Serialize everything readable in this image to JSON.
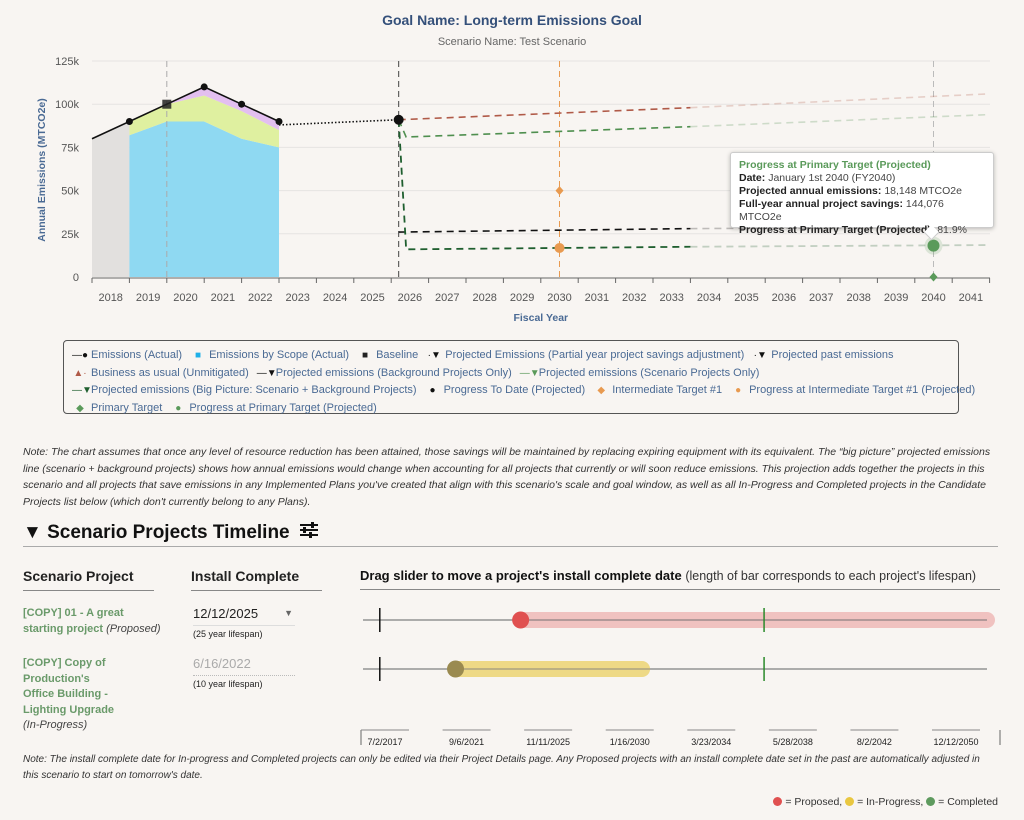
{
  "header": {
    "title": "Goal Name: Long-term Emissions Goal",
    "subtitle": "Scenario Name: Test Scenario"
  },
  "colors": {
    "scope1": "#8fd9f2",
    "scope2": "#dff0a0",
    "scope3": "#e3bff0",
    "unmitigated_fill": "#e2e0de",
    "bau": "#b05a48",
    "scenario_green": "#4f8f4f",
    "big_picture": "#1f5f2f",
    "intermediate": "#e89a50",
    "primary": "#5a9a5a",
    "axis_label": "#4a6a94",
    "proposed": "#e05050",
    "in_progress": "#e9c740",
    "completed": "#5e9a5e"
  },
  "chart_data": {
    "type": "line",
    "title": "Goal Name: Long-term Emissions Goal",
    "subtitle": "Scenario Name: Test Scenario",
    "xlabel": "Fiscal Year",
    "ylabel": "Annual Emissions (MTCO2e)",
    "xlim": [
      2018,
      2042
    ],
    "ylim": [
      0,
      125000
    ],
    "yticks": [
      0,
      25000,
      50000,
      75000,
      100000,
      125000
    ],
    "ytick_labels": [
      "0",
      "25k",
      "50k",
      "75k",
      "100k",
      "125k"
    ],
    "xtick_labels": [
      "2018",
      "2019",
      "2020",
      "2021",
      "2022",
      "2023",
      "2024",
      "2025",
      "2026",
      "2027",
      "2028",
      "2029",
      "2030",
      "2031",
      "2032",
      "2033",
      "2034",
      "2035",
      "2036",
      "2037",
      "2038",
      "2039",
      "2040",
      "2041"
    ],
    "grid": true,
    "series": [
      {
        "name": "Emissions (Actual)",
        "type": "line",
        "x": [
          2018,
          2019,
          2020,
          2021,
          2022,
          2023
        ],
        "y": [
          80000,
          90000,
          100000,
          110000,
          100000,
          90000
        ]
      },
      {
        "name": "Emissions by Scope (Actual) - Scope 1",
        "type": "area",
        "x": [
          2019,
          2020,
          2021,
          2022,
          2023
        ],
        "y": [
          82000,
          90000,
          90000,
          80000,
          75000
        ]
      },
      {
        "name": "Emissions by Scope (Actual) - Scope 2",
        "type": "area",
        "x": [
          2019,
          2020,
          2021,
          2022,
          2023
        ],
        "y": [
          8000,
          10000,
          15000,
          16000,
          10000
        ]
      },
      {
        "name": "Emissions by Scope (Actual) - Scope 3",
        "type": "area",
        "x": [
          2019,
          2020,
          2021,
          2022,
          2023
        ],
        "y": [
          0,
          0,
          5000,
          4000,
          5000
        ]
      },
      {
        "name": "Baseline",
        "type": "point",
        "x": [
          2020
        ],
        "y": [
          100000
        ]
      },
      {
        "name": "Projected past emissions",
        "type": "line",
        "x": [
          2023,
          2026.2
        ],
        "y": [
          88000,
          91000
        ]
      },
      {
        "name": "Business as usual (Unmitigated)",
        "type": "line",
        "x": [
          2026.2,
          2034,
          2042
        ],
        "y": [
          91000,
          98000,
          106000
        ]
      },
      {
        "name": "Projected emissions (Scenario Projects Only)",
        "type": "line",
        "x": [
          2026.2,
          2026.4,
          2034,
          2042
        ],
        "y": [
          91000,
          81000,
          87000,
          94000
        ]
      },
      {
        "name": "Projected emissions (Background Projects Only)",
        "type": "line",
        "x": [
          2026.2,
          2034,
          2042
        ],
        "y": [
          26000,
          28000,
          29000
        ]
      },
      {
        "name": "Projected emissions (Big Picture: Scenario + Background Projects)",
        "type": "line",
        "x": [
          2026.2,
          2026.4,
          2034,
          2042
        ],
        "y": [
          91000,
          16000,
          17500,
          18500
        ]
      },
      {
        "name": "Progress To Date (Projected)",
        "type": "point",
        "x": [
          2026.2
        ],
        "y": [
          91000
        ]
      },
      {
        "name": "Intermediate Target #1",
        "type": "point",
        "x": [
          2030.5
        ],
        "y": [
          50000
        ]
      },
      {
        "name": "Progress at Intermediate Target #1 (Projected)",
        "type": "point",
        "x": [
          2030.5
        ],
        "y": [
          16800
        ]
      },
      {
        "name": "Primary Target",
        "type": "point",
        "x": [
          2040.5
        ],
        "y": [
          0
        ]
      },
      {
        "name": "Progress at Primary Target (Projected)",
        "type": "point",
        "x": [
          2040.5
        ],
        "y": [
          18148
        ]
      }
    ],
    "vlines": [
      2020,
      2026.2,
      2030.5,
      2040.5
    ],
    "legend_position": "bottom"
  },
  "tooltip": {
    "title": "Progress at Primary Target (Projected)",
    "rows": [
      {
        "label": "Date:",
        "value": "January 1st 2040 (FY2040)"
      },
      {
        "label": "Projected annual emissions:",
        "value": "18,148 MTCO2e"
      },
      {
        "label": "Full-year annual project savings:",
        "value": "144,076 MTCO2e"
      },
      {
        "label": "Progress at Primary Target (Projected):",
        "value": "81.9%"
      }
    ]
  },
  "legend": {
    "rows": [
      [
        {
          "label": "Emissions (Actual)",
          "symbol": "line-dot",
          "color": "#111111"
        },
        {
          "label": "Emissions by Scope (Actual)",
          "symbol": "square",
          "color": "#1fb0e8"
        },
        {
          "label": "Baseline",
          "symbol": "square",
          "color": "#222222"
        },
        {
          "label": "Projected Emissions (Partial year project savings adjustment)",
          "symbol": "dot-triangle",
          "color": "#111111"
        },
        {
          "label": "Projected past emissions",
          "symbol": "dot-triangle",
          "color": "#111111"
        }
      ],
      [
        {
          "label": "Business as usual (Unmitigated)",
          "symbol": "triangle-up",
          "color": "#b05a48"
        },
        {
          "label": "Projected emissions (Background Projects Only)",
          "symbol": "triangle-down",
          "color": "#111111"
        },
        {
          "label": "Projected emissions (Scenario Projects Only)",
          "symbol": "triangle-down",
          "color": "#5a9a5a"
        }
      ],
      [
        {
          "label": "Projected emissions (Big Picture: Scenario + Background Projects)",
          "symbol": "triangle-down",
          "color": "#1f5f2f"
        },
        {
          "label": "Progress To Date (Projected)",
          "symbol": "circle",
          "color": "#111111"
        },
        {
          "label": "Intermediate Target #1",
          "symbol": "diamond",
          "color": "#e89a50"
        },
        {
          "label": "Progress at Intermediate Target #1 (Projected)",
          "symbol": "circle",
          "color": "#e89a50"
        }
      ],
      [
        {
          "label": "Primary Target",
          "symbol": "diamond",
          "color": "#5a9a5a"
        },
        {
          "label": "Progress at Primary Target (Projected)",
          "symbol": "circle",
          "color": "#5a9a5a"
        }
      ]
    ]
  },
  "note": "Note: The chart assumes that once any level of resource reduction has been attained, those savings will be maintained by replacing expiring equipment with its equivalent. The “big picture” projected emissions line (scenario + background projects) shows how annual emissions would change when accounting for all projects that currently or will soon reduce emissions. This projection adds together the projects in this scenario and all projects that save emissions in any Implemented Plans you've created that align with this scenario's scale and goal window, as well as all In-Progress and Completed projects in the Candidate Projects list below (which don't currently belong to any Plans).",
  "timeline": {
    "section_title": "Scenario Projects Timeline",
    "toggle_icon": "▼",
    "settings_icon": "sliders-icon",
    "col_project": "Scenario Project",
    "col_install": "Install Complete",
    "col_slider_bold": "Drag slider to move a project's install complete date",
    "col_slider_sub": "(length of bar corresponds to each project's lifespan)",
    "axis_start": "2017-07-02",
    "axis_end": "2050-12-12",
    "axis_labels": [
      "7/2/2017",
      "9/6/2021",
      "11/11/2025",
      "1/16/2030",
      "3/23/2034",
      "5/28/2038",
      "8/2/2042",
      "12/12/2050"
    ],
    "today_marker_year": 2018.4,
    "goal_marker_year": 2039.0,
    "projects": [
      {
        "name": "[COPY] 01 - A great starting project",
        "status": "(Proposed)",
        "status_key": "proposed",
        "install_date": "12/12/2025",
        "lifespan": "(25 year lifespan)",
        "editable": true,
        "start_year": 2025.95,
        "lifespan_years": 25
      },
      {
        "name": "[COPY] Copy of Production's Office Building - Lighting Upgrade",
        "status": "(In-Progress)",
        "status_key": "in_progress",
        "install_date": "6/16/2022",
        "lifespan": "(10 year lifespan)",
        "editable": false,
        "start_year": 2022.46,
        "lifespan_years": 10
      }
    ],
    "bottom_note": "Note: The install complete date for In-progress and Completed projects can only be edited via their Project Details page. Any Proposed projects with an install complete date set in the past are automatically adjusted in this scenario to start on tomorrow's date.",
    "status_legend": [
      {
        "label": "= Proposed,",
        "key": "proposed"
      },
      {
        "label": "= In-Progress,",
        "key": "in_progress"
      },
      {
        "label": "= Completed",
        "key": "completed"
      }
    ]
  }
}
